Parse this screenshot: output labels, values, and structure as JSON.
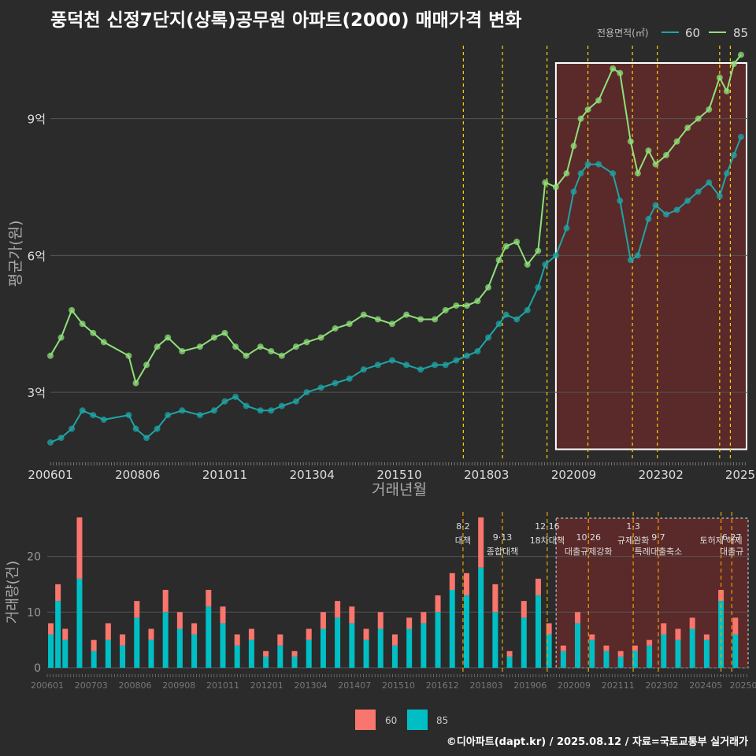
{
  "title": "풍덕천 신정7단지(상록)공무원 아파트(2000) 매매가격 변화",
  "caption": "©디아파트(dapt.kr) / 2025.08.12 / 자료=국토교통부 실거래가",
  "colors": {
    "s60": "#1fa5a5",
    "s85": "#8fe07a",
    "bar60": "#f8766d",
    "bar85": "#00bfc4",
    "vline": "#ffd400",
    "highlight": "#6b2a2a"
  },
  "chart_data": [
    {
      "type": "line",
      "title": "풍덕천 신정7단지(상록)공무원 아파트(2000) 매매가격 변화",
      "xlabel": "거래년월",
      "ylabel": "평균가(원)",
      "x_ticks": [
        "200601",
        "200806",
        "201011",
        "201304",
        "201510",
        "201803",
        "202009",
        "202302",
        "2025"
      ],
      "y_ticks": [
        "3억",
        "6억",
        "9억"
      ],
      "ylim": [
        1.5,
        10.6
      ],
      "xlim": [
        2006.0,
        2025.6
      ],
      "y_unit": "억",
      "legend": {
        "title": "전용면적(㎡)",
        "position": "top-right",
        "entries": [
          "60",
          "85"
        ]
      },
      "highlight_range": [
        2020.2,
        2025.6
      ],
      "vlines": [
        2017.6,
        2018.7,
        2019.95,
        2021.1,
        2022.35,
        2023.05,
        2024.8,
        2025.1
      ],
      "series": [
        {
          "name": "85",
          "x": [
            2006.0,
            2006.3,
            2006.6,
            2006.9,
            2007.2,
            2007.5,
            2008.2,
            2008.4,
            2008.7,
            2009.0,
            2009.3,
            2009.7,
            2010.2,
            2010.6,
            2010.9,
            2011.2,
            2011.5,
            2011.9,
            2012.2,
            2012.5,
            2012.9,
            2013.2,
            2013.6,
            2014.0,
            2014.4,
            2014.8,
            2015.2,
            2015.6,
            2016.0,
            2016.4,
            2016.8,
            2017.1,
            2017.4,
            2017.7,
            2018.0,
            2018.3,
            2018.6,
            2018.8,
            2019.1,
            2019.4,
            2019.7,
            2019.9,
            2020.2,
            2020.5,
            2020.7,
            2020.9,
            2021.1,
            2021.4,
            2021.8,
            2022.0,
            2022.3,
            2022.5,
            2022.8,
            2023.0,
            2023.3,
            2023.6,
            2023.9,
            2024.2,
            2024.5,
            2024.8,
            2025.0,
            2025.2,
            2025.4
          ],
          "values": [
            3.8,
            4.2,
            4.8,
            4.5,
            4.3,
            4.1,
            3.8,
            3.2,
            3.6,
            4.0,
            4.2,
            3.9,
            4.0,
            4.2,
            4.3,
            4.0,
            3.8,
            4.0,
            3.9,
            3.8,
            4.0,
            4.1,
            4.2,
            4.4,
            4.5,
            4.7,
            4.6,
            4.5,
            4.7,
            4.6,
            4.6,
            4.8,
            4.9,
            4.9,
            5.0,
            5.3,
            5.9,
            6.2,
            6.3,
            5.8,
            6.1,
            7.6,
            7.5,
            7.8,
            8.4,
            9.0,
            9.2,
            9.4,
            10.1,
            10.0,
            8.5,
            7.8,
            8.3,
            8.0,
            8.2,
            8.5,
            8.8,
            9.0,
            9.2,
            9.9,
            9.6,
            10.2,
            10.4
          ]
        },
        {
          "name": "60",
          "x": [
            2006.0,
            2006.3,
            2006.6,
            2006.9,
            2007.2,
            2007.5,
            2008.2,
            2008.4,
            2008.7,
            2009.0,
            2009.3,
            2009.7,
            2010.2,
            2010.6,
            2010.9,
            2011.2,
            2011.5,
            2011.9,
            2012.2,
            2012.5,
            2012.9,
            2013.2,
            2013.6,
            2014.0,
            2014.4,
            2014.8,
            2015.2,
            2015.6,
            2016.0,
            2016.4,
            2016.8,
            2017.1,
            2017.4,
            2017.7,
            2018.0,
            2018.3,
            2018.6,
            2018.8,
            2019.1,
            2019.4,
            2019.7,
            2019.9,
            2020.2,
            2020.5,
            2020.7,
            2020.9,
            2021.1,
            2021.4,
            2021.8,
            2022.0,
            2022.3,
            2022.5,
            2022.8,
            2023.0,
            2023.3,
            2023.6,
            2023.9,
            2024.2,
            2024.5,
            2024.8,
            2025.0,
            2025.2,
            2025.4
          ],
          "values": [
            1.9,
            2.0,
            2.2,
            2.6,
            2.5,
            2.4,
            2.5,
            2.2,
            2.0,
            2.2,
            2.5,
            2.6,
            2.5,
            2.6,
            2.8,
            2.9,
            2.7,
            2.6,
            2.6,
            2.7,
            2.8,
            3.0,
            3.1,
            3.2,
            3.3,
            3.5,
            3.6,
            3.7,
            3.6,
            3.5,
            3.6,
            3.6,
            3.7,
            3.8,
            3.9,
            4.2,
            4.5,
            4.7,
            4.6,
            4.8,
            5.3,
            5.8,
            6.0,
            6.6,
            7.4,
            7.8,
            8.0,
            8.0,
            7.8,
            7.2,
            5.9,
            6.0,
            6.8,
            7.1,
            6.9,
            7.0,
            7.2,
            7.4,
            7.6,
            7.3,
            7.8,
            8.2,
            8.6
          ]
        }
      ]
    },
    {
      "type": "bar",
      "xlabel": "",
      "ylabel": "거래량(건)",
      "x_ticks": [
        "200601",
        "200703",
        "200806",
        "200908",
        "201011",
        "201201",
        "201304",
        "201407",
        "201510",
        "201612",
        "201803",
        "201906",
        "202009",
        "202111",
        "202302",
        "202405",
        "20250"
      ],
      "y_ticks": [
        "0",
        "10",
        "20"
      ],
      "ylim": [
        0,
        28
      ],
      "xlim": [
        2006.0,
        2025.6
      ],
      "legend": {
        "position": "bottom",
        "entries": [
          "60",
          "85"
        ]
      },
      "highlight_range": [
        2020.2,
        2025.6
      ],
      "annotations": [
        {
          "x": 2017.6,
          "date": "8·2",
          "text": "대책"
        },
        {
          "x": 2018.7,
          "date": "9·13",
          "text": "종합대책"
        },
        {
          "x": 2019.95,
          "date": "12·16",
          "text": "18차대책"
        },
        {
          "x": 2021.1,
          "date": "10·26",
          "text": "대출규제강화"
        },
        {
          "x": 2022.35,
          "date": "1·3",
          "text": "규제완화"
        },
        {
          "x": 2023.05,
          "date": "9·7",
          "text": "특례대출축소"
        },
        {
          "x": 2024.8,
          "date": "",
          "text": "토허제 해제"
        },
        {
          "x": 2025.1,
          "date": "6·27",
          "text": "대출규"
        }
      ],
      "series": [
        {
          "name": "60",
          "x": [
            2006.1,
            2006.3,
            2006.5,
            2006.9,
            2007.3,
            2007.7,
            2008.1,
            2008.5,
            2008.9,
            2009.3,
            2009.7,
            2010.1,
            2010.5,
            2010.9,
            2011.3,
            2011.7,
            2012.1,
            2012.5,
            2012.9,
            2013.3,
            2013.7,
            2014.1,
            2014.5,
            2014.9,
            2015.3,
            2015.7,
            2016.1,
            2016.5,
            2016.9,
            2017.3,
            2017.7,
            2018.1,
            2018.5,
            2018.9,
            2019.3,
            2019.7,
            2020.0,
            2020.4,
            2020.8,
            2021.2,
            2021.6,
            2022.0,
            2022.4,
            2022.8,
            2023.2,
            2023.6,
            2024.0,
            2024.4,
            2024.8,
            2025.2
          ],
          "values": [
            2,
            3,
            2,
            11,
            2,
            3,
            2,
            3,
            2,
            4,
            3,
            2,
            3,
            3,
            2,
            2,
            1,
            2,
            1,
            2,
            3,
            3,
            3,
            2,
            3,
            2,
            2,
            2,
            3,
            3,
            4,
            9,
            5,
            1,
            3,
            3,
            2,
            1,
            2,
            1,
            1,
            1,
            1,
            1,
            2,
            2,
            2,
            1,
            2,
            3
          ]
        },
        {
          "name": "85",
          "x": [
            2006.1,
            2006.3,
            2006.5,
            2006.9,
            2007.3,
            2007.7,
            2008.1,
            2008.5,
            2008.9,
            2009.3,
            2009.7,
            2010.1,
            2010.5,
            2010.9,
            2011.3,
            2011.7,
            2012.1,
            2012.5,
            2012.9,
            2013.3,
            2013.7,
            2014.1,
            2014.5,
            2014.9,
            2015.3,
            2015.7,
            2016.1,
            2016.5,
            2016.9,
            2017.3,
            2017.7,
            2018.1,
            2018.5,
            2018.9,
            2019.3,
            2019.7,
            2020.0,
            2020.4,
            2020.8,
            2021.2,
            2021.6,
            2022.0,
            2022.4,
            2022.8,
            2023.2,
            2023.6,
            2024.0,
            2024.4,
            2024.8,
            2025.2
          ],
          "values": [
            6,
            12,
            5,
            16,
            3,
            5,
            4,
            9,
            5,
            10,
            7,
            6,
            11,
            8,
            4,
            5,
            2,
            4,
            2,
            5,
            7,
            9,
            8,
            5,
            7,
            4,
            7,
            8,
            10,
            14,
            13,
            18,
            10,
            2,
            9,
            13,
            6,
            3,
            8,
            5,
            3,
            2,
            3,
            4,
            6,
            5,
            7,
            5,
            12,
            6
          ]
        }
      ]
    }
  ]
}
